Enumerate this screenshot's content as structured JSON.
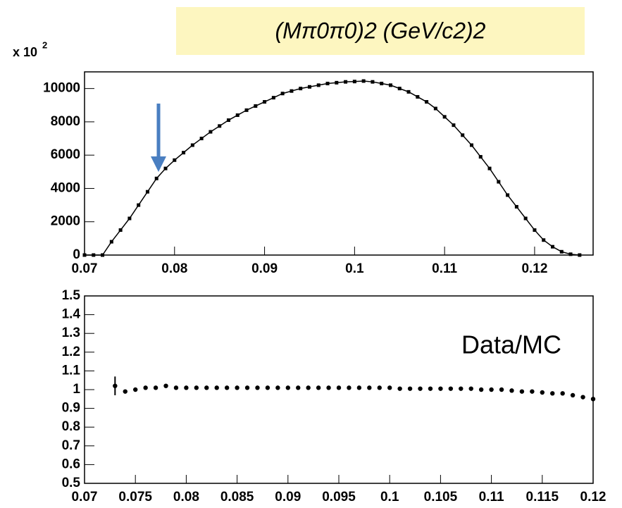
{
  "chart_data": [
    {
      "type": "line",
      "title": "(Mπ0π0)2   (GeV/c2)2",
      "multiplier": "x 10",
      "multiplier_exponent": "2",
      "x": [
        0.07,
        0.071,
        0.072,
        0.073,
        0.074,
        0.075,
        0.076,
        0.077,
        0.078,
        0.079,
        0.08,
        0.081,
        0.082,
        0.083,
        0.084,
        0.085,
        0.086,
        0.087,
        0.088,
        0.089,
        0.09,
        0.091,
        0.092,
        0.093,
        0.094,
        0.095,
        0.096,
        0.097,
        0.098,
        0.099,
        0.1,
        0.101,
        0.102,
        0.103,
        0.104,
        0.105,
        0.106,
        0.107,
        0.108,
        0.109,
        0.11,
        0.111,
        0.112,
        0.113,
        0.114,
        0.115,
        0.116,
        0.117,
        0.118,
        0.119,
        0.12,
        0.121,
        0.122,
        0.123,
        0.124,
        0.125
      ],
      "values": [
        0,
        0,
        0,
        800,
        1500,
        2200,
        3000,
        3800,
        4600,
        5200,
        5700,
        6150,
        6600,
        7000,
        7400,
        7750,
        8100,
        8400,
        8700,
        8950,
        9200,
        9450,
        9700,
        9850,
        10000,
        10100,
        10200,
        10300,
        10350,
        10400,
        10420,
        10450,
        10400,
        10300,
        10200,
        10000,
        9800,
        9500,
        9200,
        8800,
        8300,
        7800,
        7200,
        6600,
        5900,
        5200,
        4400,
        3600,
        2900,
        2200,
        1500,
        900,
        500,
        200,
        50,
        0
      ],
      "color": "#000000",
      "xlim": [
        0.07,
        0.1265
      ],
      "xticks": [
        0.07,
        0.08,
        0.09,
        0.1,
        0.11,
        0.12
      ],
      "ylim": [
        0,
        11000
      ],
      "yticks": [
        0,
        2000,
        4000,
        6000,
        8000,
        10000
      ]
    },
    {
      "type": "scatter",
      "annotation": "Data/MC",
      "x": [
        0.073,
        0.074,
        0.075,
        0.076,
        0.077,
        0.078,
        0.079,
        0.08,
        0.081,
        0.082,
        0.083,
        0.084,
        0.085,
        0.086,
        0.087,
        0.088,
        0.089,
        0.09,
        0.091,
        0.092,
        0.093,
        0.094,
        0.095,
        0.096,
        0.097,
        0.098,
        0.099,
        0.1,
        0.101,
        0.102,
        0.103,
        0.104,
        0.105,
        0.106,
        0.107,
        0.108,
        0.109,
        0.11,
        0.111,
        0.112,
        0.113,
        0.114,
        0.115,
        0.116,
        0.117,
        0.118,
        0.119,
        0.12
      ],
      "values": [
        1.02,
        0.99,
        1.0,
        1.01,
        1.01,
        1.02,
        1.01,
        1.01,
        1.01,
        1.01,
        1.01,
        1.01,
        1.01,
        1.01,
        1.01,
        1.01,
        1.01,
        1.01,
        1.01,
        1.01,
        1.01,
        1.01,
        1.01,
        1.01,
        1.01,
        1.01,
        1.01,
        1.01,
        1.005,
        1.005,
        1.005,
        1.005,
        1.005,
        1.005,
        1.005,
        1.005,
        1.0,
        1.0,
        1.0,
        0.995,
        0.99,
        0.99,
        0.985,
        0.98,
        0.98,
        0.97,
        0.96,
        0.95
      ],
      "errors": [
        0.05,
        0.01,
        0.008,
        0.006,
        0.005,
        0.005,
        0.004,
        0.004,
        0.004,
        0.004,
        0.004,
        0.004,
        0.004,
        0.004,
        0.004,
        0.004,
        0.004,
        0.004,
        0.004,
        0.004,
        0.004,
        0.004,
        0.004,
        0.004,
        0.004,
        0.004,
        0.004,
        0.004,
        0.004,
        0.004,
        0.004,
        0.004,
        0.004,
        0.004,
        0.004,
        0.004,
        0.004,
        0.004,
        0.004,
        0.004,
        0.004,
        0.004,
        0.005,
        0.005,
        0.005,
        0.006,
        0.006,
        0.008
      ],
      "color": "#000000",
      "xlim": [
        0.07,
        0.12
      ],
      "xticks": [
        0.07,
        0.075,
        0.08,
        0.085,
        0.09,
        0.095,
        0.1,
        0.105,
        0.11,
        0.115,
        0.12
      ],
      "ylim": [
        0.5,
        1.5
      ],
      "yticks": [
        0.5,
        0.6,
        0.7,
        0.8,
        0.9,
        1,
        1.1,
        1.2,
        1.3,
        1.4,
        1.5
      ]
    }
  ]
}
